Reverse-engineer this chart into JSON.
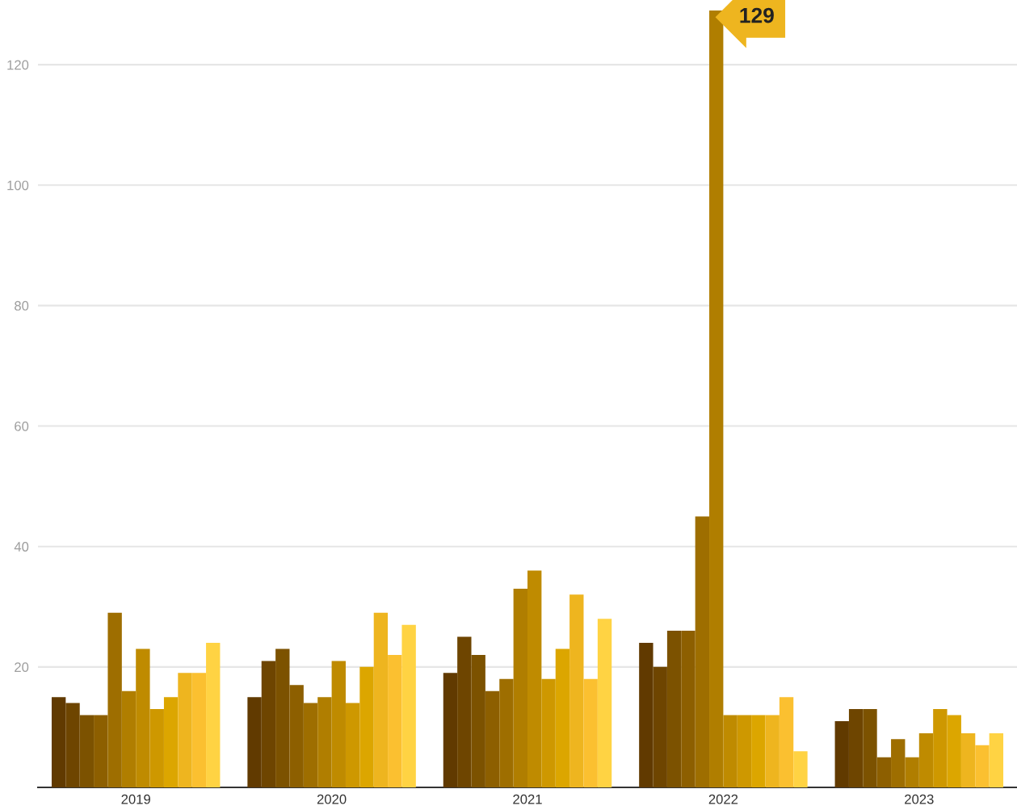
{
  "chart_data": {
    "type": "bar",
    "categories": [
      "2019",
      "2020",
      "2021",
      "2022",
      "2023"
    ],
    "series": [
      {
        "color": "#613a00",
        "values": [
          15,
          15,
          19,
          24,
          11
        ]
      },
      {
        "color": "#6e4500",
        "values": [
          14,
          21,
          25,
          20,
          13
        ]
      },
      {
        "color": "#7c5200",
        "values": [
          12,
          23,
          22,
          26,
          13
        ]
      },
      {
        "color": "#8d5f00",
        "values": [
          12,
          17,
          16,
          26,
          5
        ]
      },
      {
        "color": "#9e6e00",
        "values": [
          29,
          14,
          18,
          45,
          8
        ]
      },
      {
        "color": "#b07e00",
        "values": [
          16,
          15,
          33,
          129,
          5
        ]
      },
      {
        "color": "#bf8b00",
        "values": [
          23,
          21,
          36,
          12,
          9
        ]
      },
      {
        "color": "#ce9800",
        "values": [
          13,
          14,
          18,
          12,
          13
        ]
      },
      {
        "color": "#dca600",
        "values": [
          15,
          20,
          23,
          12,
          12
        ]
      },
      {
        "color": "#eeb51f",
        "values": [
          19,
          29,
          32,
          12,
          9
        ]
      },
      {
        "color": "#fbc030",
        "values": [
          19,
          22,
          18,
          15,
          7
        ]
      },
      {
        "color": "#ffd343",
        "values": [
          24,
          27,
          28,
          6,
          9
        ]
      }
    ],
    "ylim": [
      0,
      129
    ],
    "yticks": [
      {
        "value": 0,
        "label": null
      },
      20,
      40,
      60,
      80,
      100,
      120
    ],
    "grid": "y",
    "legend": false,
    "annotations": [
      {
        "text": "129",
        "x": "2022",
        "y": 129
      }
    ]
  }
}
